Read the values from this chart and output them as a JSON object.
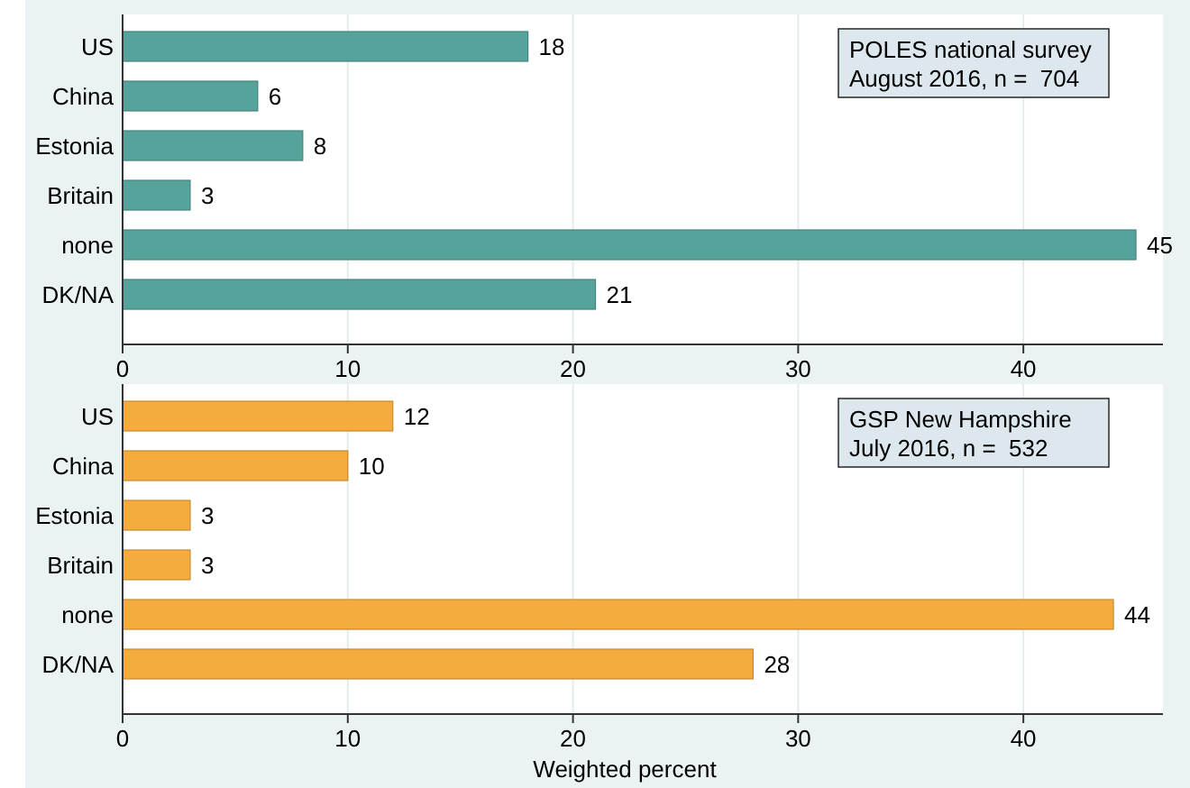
{
  "chart_data": [
    {
      "type": "bar",
      "orientation": "horizontal",
      "categories": [
        "US",
        "China",
        "Estonia",
        "Britain",
        "none",
        "DK/NA"
      ],
      "values": [
        18,
        6,
        8,
        3,
        45,
        21
      ],
      "color": "#55a39b",
      "data_labels": true,
      "xlim": [
        0,
        46.2
      ],
      "xticks": [
        0,
        10,
        20,
        30,
        40
      ],
      "grid": "x",
      "annotations": [
        "POLES national survey\nAugust 2016, n =  704"
      ]
    },
    {
      "type": "bar",
      "orientation": "horizontal",
      "categories": [
        "US",
        "China",
        "Estonia",
        "Britain",
        "none",
        "DK/NA"
      ],
      "values": [
        12,
        10,
        3,
        3,
        44,
        28
      ],
      "color": "#f5ab3e",
      "data_labels": true,
      "xlim": [
        0,
        46.2
      ],
      "xticks": [
        0,
        10,
        20,
        30,
        40
      ],
      "grid": "x",
      "xlabel": "Weighted percent",
      "annotations": [
        "GSP New Hampshire\nJuly 2016, n =  532"
      ]
    }
  ]
}
